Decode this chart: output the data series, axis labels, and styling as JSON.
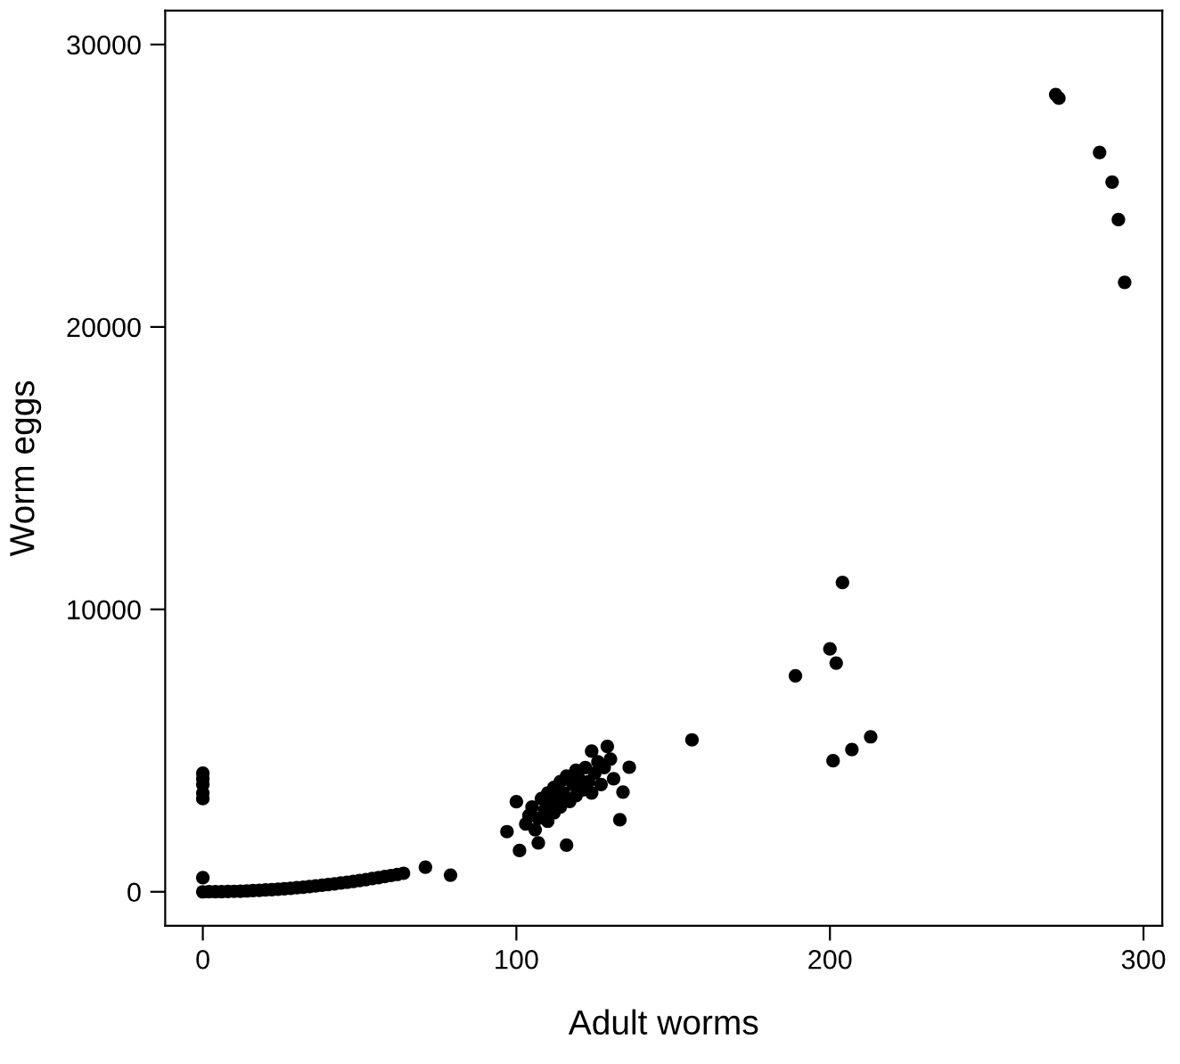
{
  "chart_data": {
    "type": "scatter",
    "xlabel": "Adult worms",
    "ylabel": "Worm eggs",
    "xlim": [
      -12,
      306
    ],
    "ylim": [
      -1200,
      31200
    ],
    "xticks": [
      0,
      100,
      200,
      300
    ],
    "yticks": [
      0,
      10000,
      20000,
      30000
    ],
    "grid": false,
    "marker": "circle",
    "series": [
      {
        "color": "#000000",
        "x": [
          0,
          0,
          0,
          0,
          0,
          0,
          0,
          2,
          4,
          6,
          8,
          10,
          12,
          14,
          16,
          18,
          20,
          22,
          24,
          26,
          28,
          30,
          32,
          34,
          36,
          38,
          40,
          42,
          44,
          46,
          48,
          50,
          52,
          54,
          56,
          58,
          60,
          62,
          64,
          71,
          79,
          97,
          100,
          101,
          103,
          104,
          105,
          106,
          107,
          107,
          108,
          109,
          110,
          110,
          111,
          112,
          112,
          113,
          114,
          114,
          115,
          116,
          116,
          117,
          118,
          119,
          119,
          120,
          121,
          122,
          123,
          124,
          124,
          125,
          126,
          127,
          128,
          129,
          130,
          131,
          133,
          134,
          136,
          156,
          189,
          200,
          201,
          202,
          204,
          207,
          213,
          272,
          273,
          286,
          290,
          292,
          294
        ],
        "values": [
          0,
          500,
          3300,
          3500,
          3800,
          4000,
          4200,
          1,
          3,
          6,
          10,
          16,
          23,
          31,
          41,
          52,
          64,
          77,
          92,
          108,
          125,
          144,
          164,
          185,
          207,
          231,
          256,
          282,
          310,
          339,
          369,
          400,
          433,
          467,
          502,
          538,
          576,
          615,
          655,
          870,
          590,
          2130,
          3190,
          1460,
          2400,
          2700,
          3000,
          2200,
          1730,
          2600,
          3300,
          2900,
          3500,
          2500,
          3100,
          3700,
          2800,
          3300,
          3900,
          3000,
          3500,
          4100,
          1650,
          3200,
          3800,
          4300,
          3400,
          4000,
          3600,
          4400,
          3900,
          4980,
          3500,
          4200,
          4600,
          3800,
          4400,
          5150,
          4700,
          4000,
          2550,
          3530,
          4410,
          5380,
          7650,
          8600,
          4640,
          8100,
          10950,
          5040,
          5490,
          28230,
          28100,
          26180,
          25130,
          23800,
          21580
        ]
      }
    ]
  }
}
